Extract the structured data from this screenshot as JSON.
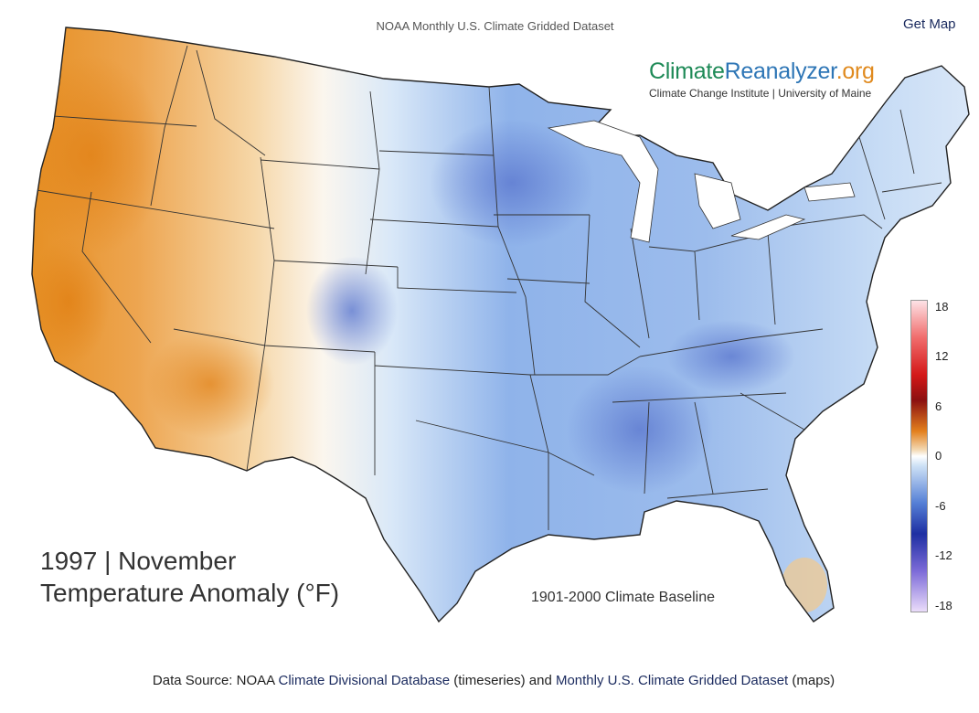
{
  "header": {
    "title": "NOAA Monthly U.S. Climate Gridded Dataset",
    "get_map": "Get Map"
  },
  "logo": {
    "part1": "Climate",
    "part2": "Reanalyzer",
    "part3": ".org",
    "subtitle": "Climate Change Institute | University of Maine"
  },
  "map": {
    "period": "1997 | November",
    "variable": "Temperature Anomaly (°F)",
    "baseline": "1901-2000 Climate Baseline"
  },
  "colorbar": {
    "ticks": [
      "18",
      "12",
      "6",
      "0",
      "-6",
      "-12",
      "-18"
    ]
  },
  "footer": {
    "prefix": "Data Source: NOAA ",
    "link1": "Climate Divisional Database",
    "middle": " (timeseries) and ",
    "link2": "Monthly U.S. Climate Gridded Dataset",
    "suffix": " (maps)"
  },
  "colors": {
    "warm_anomaly": "#e8901e",
    "cool_anomaly": "#6d97de",
    "link": "#1a2a5e"
  }
}
